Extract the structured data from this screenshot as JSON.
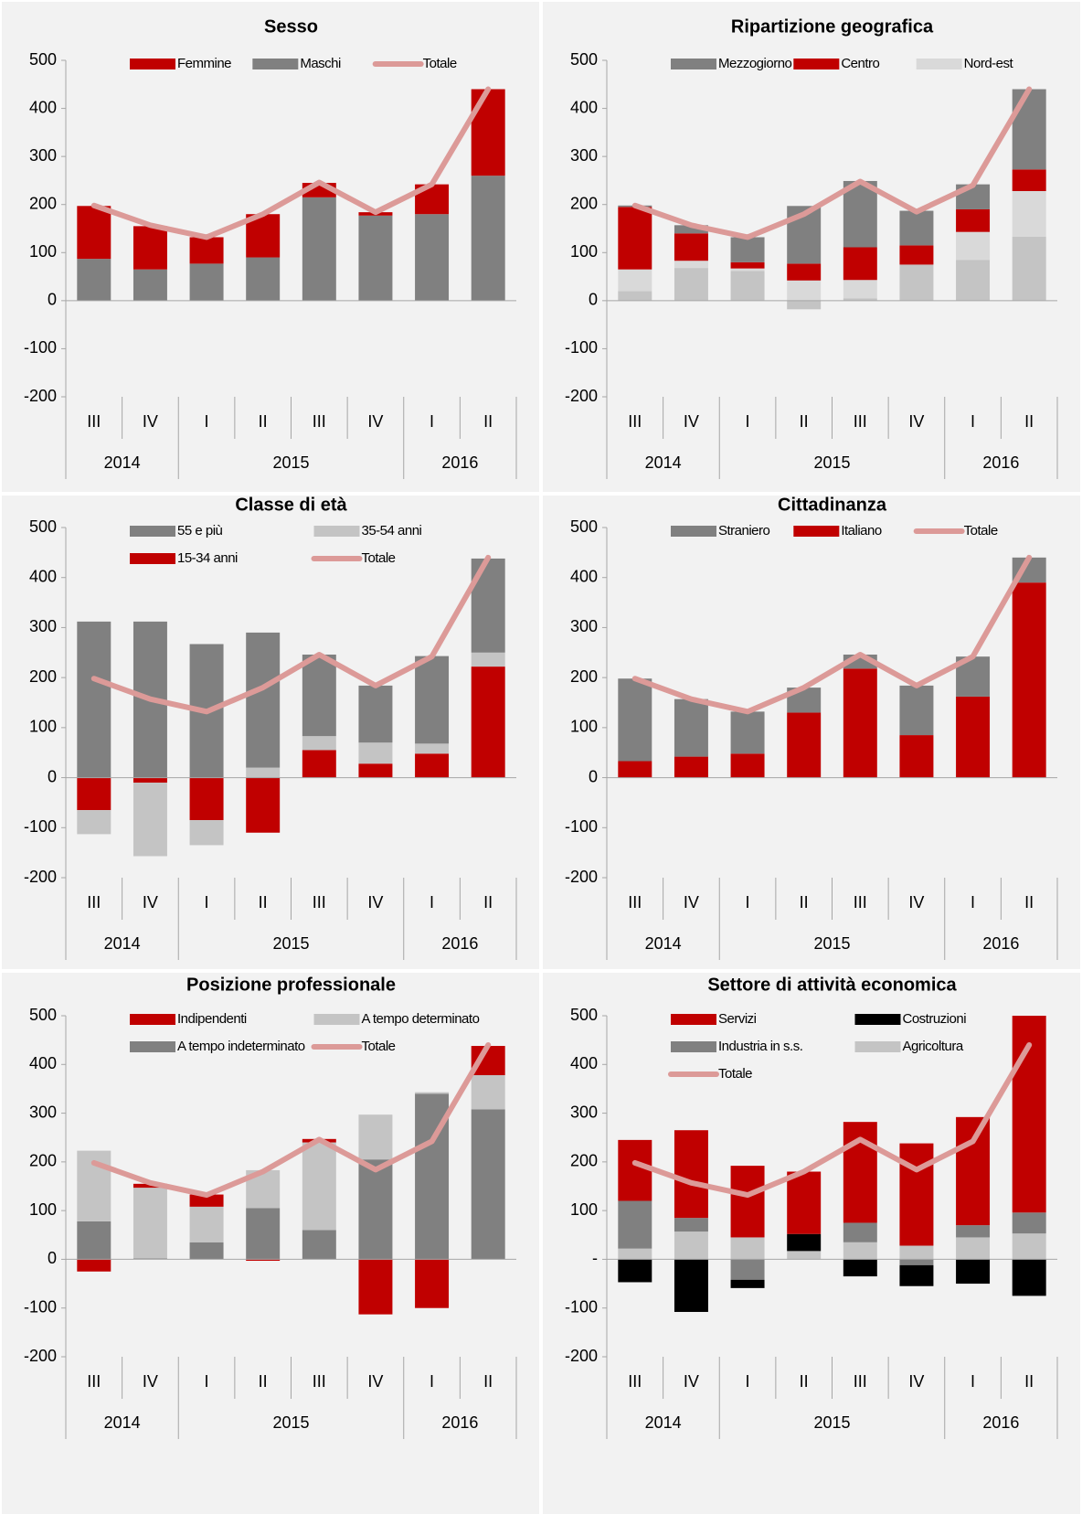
{
  "chart_data": [
    {
      "type": "bar",
      "title": "Sesso",
      "legend_columns": 3,
      "categories": [
        "III",
        "IV",
        "I",
        "II",
        "III",
        "IV",
        "I",
        "II"
      ],
      "years": [
        "2014",
        "2014",
        "2015",
        "2015",
        "2015",
        "2015",
        "2016",
        "2016"
      ],
      "ylim": [
        -200,
        500
      ],
      "yticks": [
        -200,
        -100,
        0,
        100,
        200,
        300,
        400,
        500
      ],
      "series": [
        {
          "name": "Femmine",
          "type": "bar",
          "color": "#c00000",
          "values": [
            110,
            90,
            55,
            90,
            30,
            7,
            62,
            180
          ]
        },
        {
          "name": "Maschi",
          "type": "bar",
          "color": "#808080",
          "values": [
            87,
            65,
            77,
            90,
            215,
            177,
            180,
            260
          ]
        },
        {
          "name": "Totale",
          "type": "line",
          "color": "#dc9a98",
          "values": [
            198,
            157,
            132,
            180,
            246,
            184,
            242,
            440
          ]
        }
      ]
    },
    {
      "type": "bar",
      "title": "Ripartizione geografica",
      "legend_columns": 3,
      "categories": [
        "III",
        "IV",
        "I",
        "II",
        "III",
        "IV",
        "I",
        "II"
      ],
      "years": [
        "2014",
        "2014",
        "2015",
        "2015",
        "2015",
        "2015",
        "2016",
        "2016"
      ],
      "ylim": [
        -200,
        500
      ],
      "yticks": [
        -200,
        -100,
        0,
        100,
        200,
        300,
        400,
        500
      ],
      "series": [
        {
          "name": "Mezzogiorno",
          "type": "bar",
          "color": "#808080",
          "values": [
            3,
            17,
            52,
            120,
            138,
            72,
            52,
            167
          ]
        },
        {
          "name": "Centro",
          "type": "bar",
          "color": "#c00000",
          "values": [
            130,
            57,
            13,
            35,
            68,
            40,
            47,
            45
          ]
        },
        {
          "name": "Nord-est",
          "type": "bar",
          "color": "#d9d9d9",
          "values": [
            45,
            15,
            5,
            42,
            38,
            0,
            58,
            95
          ]
        },
        {
          "type": "bar",
          "color": "#c4c4c4",
          "values": [
            20,
            68,
            62,
            -18,
            5,
            75,
            85,
            133
          ]
        },
        {
          "type": "line",
          "color": "#dc9a98",
          "values": [
            198,
            157,
            132,
            180,
            248,
            185,
            240,
            440
          ]
        }
      ]
    },
    {
      "type": "bar",
      "title": "Classe di età",
      "legend_columns": 2,
      "categories": [
        "III",
        "IV",
        "I",
        "II",
        "III",
        "IV",
        "I",
        "II"
      ],
      "years": [
        "2014",
        "2014",
        "2015",
        "2015",
        "2015",
        "2015",
        "2016",
        "2016"
      ],
      "ylim": [
        -200,
        500
      ],
      "yticks": [
        -200,
        -100,
        0,
        100,
        200,
        300,
        400,
        500
      ],
      "series": [
        {
          "name": "55 e più",
          "type": "bar",
          "color": "#808080",
          "values": [
            312,
            312,
            267,
            270,
            163,
            114,
            175,
            188
          ]
        },
        {
          "name": "35-54 anni",
          "type": "bar",
          "color": "#c4c4c4",
          "values": [
            -48,
            -147,
            -50,
            20,
            28,
            42,
            20,
            28
          ]
        },
        {
          "name": "15-34 anni",
          "type": "bar",
          "color": "#c00000",
          "values": [
            -65,
            -10,
            -85,
            -110,
            55,
            28,
            48,
            222
          ]
        },
        {
          "name": "Totale",
          "type": "line",
          "color": "#dc9a98",
          "values": [
            198,
            157,
            132,
            180,
            246,
            184,
            242,
            440
          ]
        }
      ]
    },
    {
      "type": "bar",
      "title": "Cittadinanza",
      "legend_columns": 3,
      "categories": [
        "III",
        "IV",
        "I",
        "II",
        "III",
        "IV",
        "I",
        "II"
      ],
      "years": [
        "2014",
        "2014",
        "2015",
        "2015",
        "2015",
        "2015",
        "2016",
        "2016"
      ],
      "ylim": [
        -200,
        500
      ],
      "yticks": [
        -200,
        -100,
        0,
        100,
        200,
        300,
        400,
        500
      ],
      "series": [
        {
          "name": "Straniero",
          "type": "bar",
          "color": "#808080",
          "values": [
            165,
            115,
            84,
            50,
            28,
            99,
            80,
            50
          ]
        },
        {
          "name": "Italiano",
          "type": "bar",
          "color": "#c00000",
          "values": [
            33,
            42,
            48,
            130,
            218,
            85,
            162,
            390
          ]
        },
        {
          "name": "Totale",
          "type": "line",
          "color": "#dc9a98",
          "values": [
            198,
            157,
            132,
            180,
            246,
            184,
            242,
            440
          ]
        }
      ]
    },
    {
      "type": "bar",
      "title": "Posizione professionale",
      "legend_columns": 2,
      "categories": [
        "III",
        "IV",
        "I",
        "II",
        "III",
        "IV",
        "I",
        "II"
      ],
      "years": [
        "2014",
        "2014",
        "2015",
        "2015",
        "2015",
        "2015",
        "2016",
        "2016"
      ],
      "ylim": [
        -200,
        500
      ],
      "yticks": [
        -200,
        -100,
        0,
        100,
        200,
        300,
        400,
        500
      ],
      "series": [
        {
          "name": "Indipendenti",
          "type": "bar",
          "color": "#c00000",
          "values": [
            -25,
            8,
            25,
            -3,
            7,
            -113,
            -100,
            60
          ]
        },
        {
          "name": "A tempo determinato",
          "type": "bar",
          "color": "#c4c4c4",
          "values": [
            145,
            145,
            73,
            78,
            180,
            92,
            3,
            70
          ]
        },
        {
          "name": "A tempo indeterminato",
          "type": "bar",
          "color": "#808080",
          "values": [
            78,
            2,
            35,
            105,
            60,
            205,
            340,
            308
          ]
        },
        {
          "name": "Totale",
          "type": "line",
          "color": "#dc9a98",
          "values": [
            198,
            157,
            132,
            180,
            246,
            184,
            242,
            440
          ]
        }
      ]
    },
    {
      "type": "bar",
      "title": "Settore di attività economica",
      "legend_columns": 2,
      "categories": [
        "III",
        "IV",
        "I",
        "II",
        "III",
        "IV",
        "I",
        "II"
      ],
      "years": [
        "2014",
        "2014",
        "2015",
        "2015",
        "2015",
        "2015",
        "2016",
        "2016"
      ],
      "ylim": [
        -200,
        500
      ],
      "yticks": [
        -200,
        -100,
        {
          "value": 0,
          "label": "-"
        },
        100,
        200,
        300,
        400,
        500
      ],
      "series": [
        {
          "name": "Servizi",
          "type": "bar",
          "color": "#c00000",
          "values": [
            125,
            180,
            147,
            128,
            207,
            210,
            222,
            404
          ]
        },
        {
          "name": "Costruzioni",
          "type": "bar",
          "color": "#000000",
          "values": [
            -47,
            -108,
            -17,
            35,
            -35,
            -43,
            -50,
            -75
          ]
        },
        {
          "name": "Industria in s.s.",
          "type": "bar",
          "color": "#808080",
          "values": [
            98,
            28,
            -42,
            0,
            40,
            -12,
            25,
            43
          ]
        },
        {
          "name": "Agricoltura",
          "type": "bar",
          "color": "#c4c4c4",
          "values": [
            22,
            57,
            45,
            17,
            35,
            28,
            45,
            53
          ]
        },
        {
          "name": "Totale",
          "type": "line",
          "color": "#dc9a98",
          "values": [
            198,
            157,
            132,
            180,
            246,
            184,
            242,
            440
          ]
        }
      ]
    }
  ]
}
